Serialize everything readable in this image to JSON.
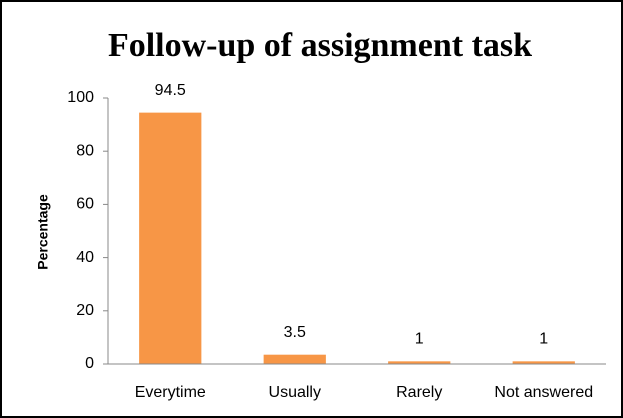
{
  "chart_data": {
    "type": "bar",
    "title": "Follow-up of assignment task",
    "y_label": "Percentage",
    "categories": [
      "Everytime",
      "Usually",
      "Rarely",
      "Not answered"
    ],
    "values": [
      94.5,
      3.5,
      1,
      1
    ],
    "color": "#f79646",
    "ylim": [
      0,
      100
    ],
    "yticks": [
      0,
      20,
      40,
      60,
      80,
      100
    ],
    "grid": false
  }
}
